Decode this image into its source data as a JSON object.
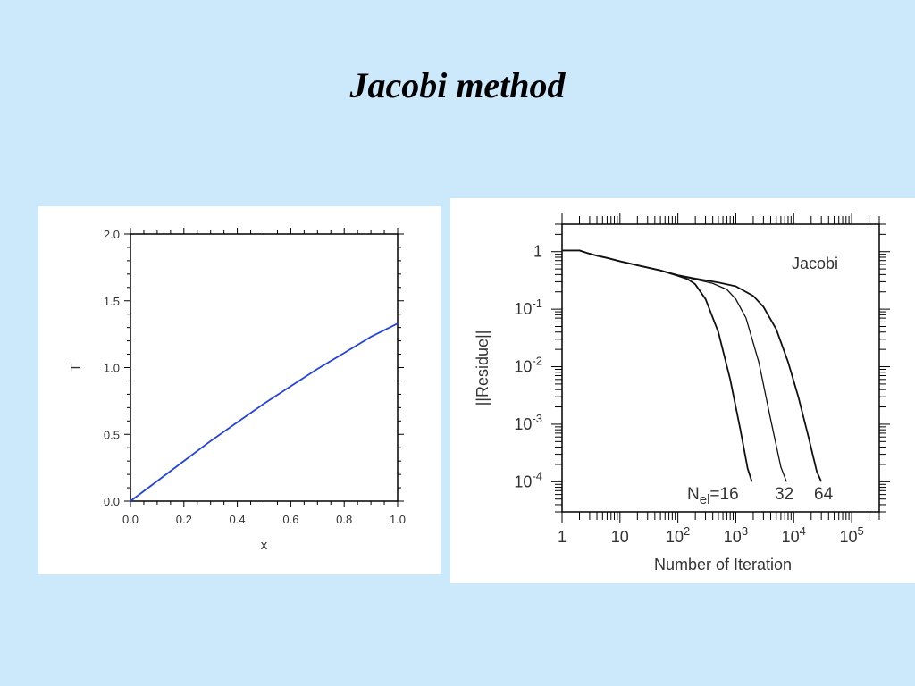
{
  "slide": {
    "title": "Jacobi method"
  },
  "chart_data": [
    {
      "type": "line",
      "xlabel": "x",
      "ylabel": "T",
      "xlim": [
        0,
        1
      ],
      "ylim": [
        0,
        2
      ],
      "xticks": [
        "0.0",
        "0.2",
        "0.4",
        "0.6",
        "0.8",
        "1.0"
      ],
      "yticks": [
        "0.0",
        "0.5",
        "1.0",
        "1.5",
        "2.0"
      ],
      "grid": false,
      "series": [
        {
          "color": "#2244dd",
          "x": [
            0,
            0.1,
            0.2,
            0.3,
            0.4,
            0.5,
            0.6,
            0.7,
            0.8,
            0.9,
            1.0
          ],
          "y": [
            0,
            0.15,
            0.3,
            0.45,
            0.59,
            0.73,
            0.86,
            0.99,
            1.11,
            1.23,
            1.33
          ]
        }
      ]
    },
    {
      "type": "line",
      "xlabel": "Number  of Iteration",
      "ylabel": "||Residue||",
      "xscale": "log",
      "yscale": "log",
      "xlim": [
        1,
        300000
      ],
      "ylim": [
        3e-05,
        3
      ],
      "xticks": [
        {
          "base": "1",
          "exp": ""
        },
        {
          "base": "10",
          "exp": ""
        },
        {
          "base": "10",
          "exp": "2"
        },
        {
          "base": "10",
          "exp": "3"
        },
        {
          "base": "10",
          "exp": "4"
        },
        {
          "base": "10",
          "exp": "5"
        }
      ],
      "yticks": [
        {
          "base": "1",
          "exp": ""
        },
        {
          "base": "10",
          "exp": "-1"
        },
        {
          "base": "10",
          "exp": "-2"
        },
        {
          "base": "10",
          "exp": "-3"
        },
        {
          "base": "10",
          "exp": "-4"
        }
      ],
      "annotations": {
        "method": "Jacobi",
        "nel_prefix": "N",
        "nel_sub": "el",
        "nel_first": "=16",
        "second": "32",
        "third": "64"
      },
      "series": [
        {
          "label": "16",
          "x": [
            1,
            2,
            2.7,
            4,
            6,
            10,
            20,
            50,
            100,
            150,
            200,
            300,
            500,
            800,
            1200,
            1600,
            1900
          ],
          "y": [
            1.05,
            1.05,
            0.95,
            0.85,
            0.78,
            0.68,
            0.58,
            0.47,
            0.38,
            0.33,
            0.27,
            0.15,
            0.04,
            0.006,
            0.0008,
            0.00017,
            0.0001
          ]
        },
        {
          "label": "32",
          "x": [
            1,
            2,
            2.7,
            4,
            6,
            10,
            20,
            50,
            100,
            200,
            400,
            700,
            1000,
            1500,
            2500,
            4000,
            6000,
            7500
          ],
          "y": [
            1.05,
            1.05,
            0.95,
            0.85,
            0.78,
            0.68,
            0.58,
            0.47,
            0.39,
            0.33,
            0.28,
            0.22,
            0.15,
            0.07,
            0.012,
            0.0012,
            0.00018,
            0.0001
          ]
        },
        {
          "label": "64",
          "x": [
            1,
            2,
            2.7,
            4,
            6,
            10,
            20,
            50,
            100,
            200,
            500,
            1000,
            2000,
            3000,
            5000,
            8000,
            12000,
            18000,
            25000,
            30000
          ],
          "y": [
            1.05,
            1.05,
            0.95,
            0.85,
            0.78,
            0.68,
            0.58,
            0.47,
            0.39,
            0.34,
            0.29,
            0.25,
            0.17,
            0.11,
            0.045,
            0.012,
            0.003,
            0.0006,
            0.00015,
            0.0001
          ]
        }
      ]
    }
  ]
}
